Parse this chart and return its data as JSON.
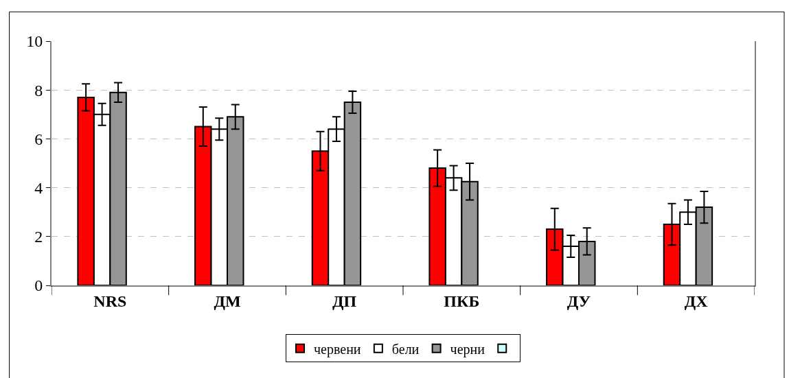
{
  "chart_data": {
    "type": "bar",
    "categories": [
      "NRS",
      "ДМ",
      "ДП",
      "ПКБ",
      "ДУ",
      "ДХ"
    ],
    "series": [
      {
        "name": "червени",
        "color": "#ff0000",
        "values": [
          7.7,
          6.5,
          5.5,
          4.8,
          2.3,
          2.5
        ],
        "errors": [
          0.55,
          0.8,
          0.8,
          0.75,
          0.85,
          0.85
        ]
      },
      {
        "name": "бели",
        "color": "#ffffff",
        "values": [
          7.0,
          6.4,
          6.4,
          4.4,
          1.6,
          3.0
        ],
        "errors": [
          0.45,
          0.45,
          0.5,
          0.5,
          0.45,
          0.5
        ]
      },
      {
        "name": "черни",
        "color": "#969696",
        "values": [
          7.9,
          6.9,
          7.5,
          4.25,
          1.8,
          3.2
        ],
        "errors": [
          0.4,
          0.5,
          0.45,
          0.75,
          0.55,
          0.65
        ]
      },
      {
        "color": "#ccffff",
        "values": [
          null,
          null,
          null,
          null,
          null,
          null
        ]
      }
    ],
    "ylim": [
      0,
      10
    ],
    "yticks": [
      0,
      2,
      4,
      6,
      8,
      10
    ],
    "grid": "y",
    "legend": "bottom"
  }
}
